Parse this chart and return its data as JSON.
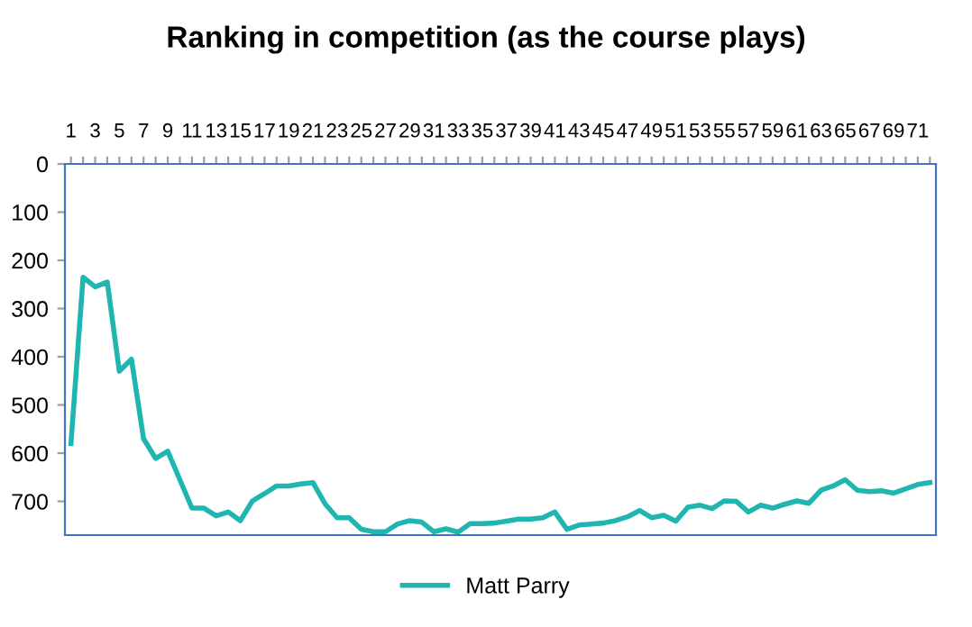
{
  "chart_data": {
    "type": "line",
    "title": "Ranking in competition (as the course plays)",
    "categories": [
      "1",
      null,
      "3",
      null,
      "5",
      null,
      "7",
      null,
      "9",
      null,
      "11",
      null,
      "13",
      null,
      "15",
      null,
      "17",
      null,
      "19",
      null,
      "21",
      null,
      "23",
      null,
      "25",
      null,
      "27",
      null,
      "29",
      null,
      "31",
      null,
      "33",
      null,
      "35",
      null,
      "37",
      null,
      "39",
      null,
      "41",
      null,
      "43",
      null,
      "45",
      null,
      "47",
      null,
      "49",
      null,
      "51",
      null,
      "53",
      null,
      "55",
      null,
      "57",
      null,
      "59",
      null,
      "61",
      null,
      "63",
      null,
      "65",
      null,
      "67",
      null,
      "69",
      null,
      "71",
      null
    ],
    "series": [
      {
        "name": "Matt Parry",
        "color": "#1fb5b0",
        "values": [
          580,
          235,
          255,
          245,
          430,
          405,
          570,
          611,
          596,
          655,
          714,
          714,
          730,
          722,
          740,
          699,
          684,
          668,
          668,
          664,
          661,
          705,
          734,
          734,
          758,
          763,
          763,
          747,
          740,
          743,
          763,
          757,
          764,
          746,
          746,
          745,
          741,
          737,
          737,
          734,
          722,
          758,
          749,
          747,
          745,
          740,
          732,
          719,
          734,
          729,
          741,
          712,
          708,
          715,
          699,
          700,
          722,
          708,
          714,
          706,
          699,
          704,
          677,
          668,
          655,
          677,
          680,
          678,
          683,
          674,
          665,
          661
        ]
      }
    ],
    "ylim": [
      770,
      0
    ],
    "yticks": [
      0,
      100,
      200,
      300,
      400,
      500,
      600,
      700
    ],
    "grid": false,
    "legend": "bottom",
    "marker": "none",
    "line_style": "solid"
  }
}
